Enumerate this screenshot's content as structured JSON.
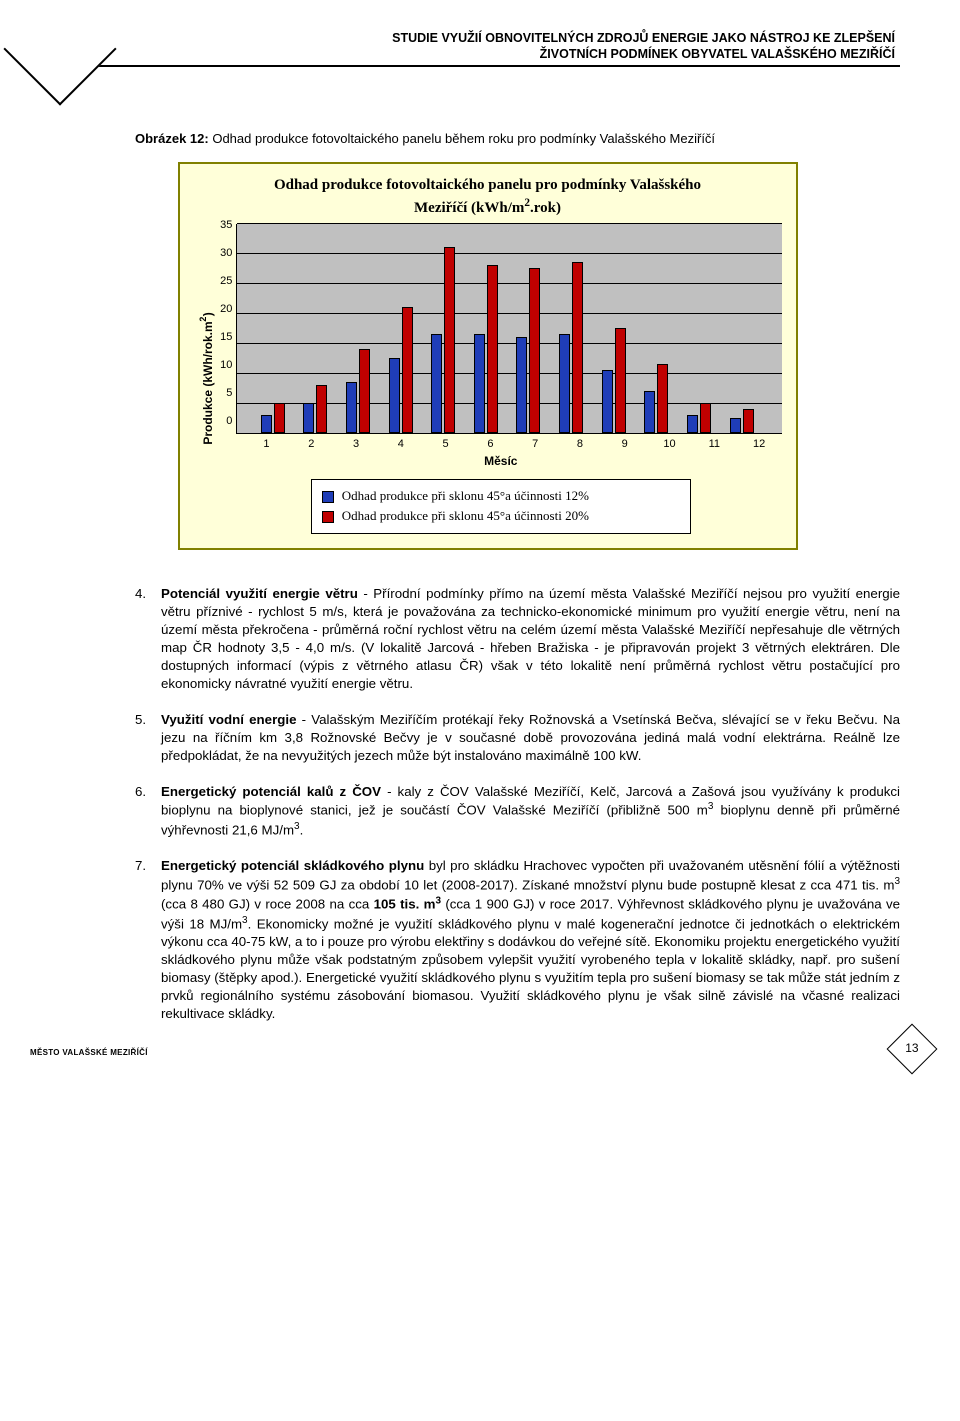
{
  "header": {
    "line1": "STUDIE VYUŽIÍ OBNOVITELNÝCH ZDROJŮ ENERGIE JAKO NÁSTROJ KE ZLEPŠENÍ",
    "line2": "ŽIVOTNÍCH PODMÍNEK OBYVATEL VALAŠSKÉHO MEZIŘÍČÍ"
  },
  "figure_caption": {
    "lead": "Obrázek 12:",
    "rest": "Odhad produkce fotovoltaického panelu během roku pro podmínky Valašského Meziříčí"
  },
  "chart": {
    "title_line1": "Odhad produkce fotovoltaického panelu pro podmínky Valašského",
    "title_line2": "Meziříčí (kWh/m².rok)",
    "y_label": "Produkce (kWh/rok.m²)",
    "x_label": "Měsíc",
    "y_max": 35,
    "y_step": 5,
    "y_ticks": [
      "0",
      "5",
      "10",
      "15",
      "20",
      "25",
      "30",
      "35"
    ],
    "x_ticks": [
      "1",
      "2",
      "3",
      "4",
      "5",
      "6",
      "7",
      "8",
      "9",
      "10",
      "11",
      "12"
    ],
    "series12_color": "#1f3db8",
    "series20_color": "#c00000",
    "grid_color": "#000000",
    "plot_bg": "#c0c0c0",
    "box_bg": "#ffffd9",
    "box_border": "#808000",
    "values12": [
      3,
      5,
      8.5,
      12.5,
      16.5,
      16.5,
      16,
      16.5,
      10.5,
      7,
      3,
      2.5
    ],
    "values20": [
      5,
      8,
      14,
      21,
      31,
      28,
      27.5,
      28.5,
      17.5,
      11.5,
      5,
      4
    ],
    "legend12": "Odhad produkce při sklonu 45°a účinnosti 12%",
    "legend20": "Odhad produkce při sklonu 45°a účinnosti 20%"
  },
  "items": {
    "p4_num": "4.",
    "p4_lead": "Potenciál využití energie větru",
    "p4_text": " - Přírodní podmínky přímo na území města Valašské Meziříčí nejsou pro využití energie větru příznivé - rychlost 5 m/s, která je považována za technicko-ekonomické minimum pro využití energie větru, není na území města překročena - průměrná roční rychlost větru na celém území města Valašské Meziříčí nepřesahuje dle větrných map ČR hodnoty 3,5 - 4,0 m/s. (V lokalitě Jarcová - hřeben Bražiska - je připravován projekt 3 větrných elektráren. Dle dostupných informací (výpis z větrného atlasu ČR) však v této lokalitě není průměrná rychlost větru postačující pro ekonomicky návratné využití energie větru.",
    "p5_num": "5.",
    "p5_lead": "Využití vodní energie",
    "p5_text": " - Valašským Meziříčím protékají řeky Rožnovská a Vsetínská Bečva, slévající se v řeku Bečvu. Na jezu na říčním km 3,8 Rožnovské Bečvy je v současné době provozována jediná malá vodní elektrárna. Reálně lze předpokládat, že na nevyužitých jezech může být instalováno maximálně 100 kW.",
    "p6_num": "6.",
    "p6_lead": "Energetický potenciál kalů z ČOV",
    "p6_text_a": " - kaly z ČOV Valašské Meziříčí, Kelč, Jarcová a Zašová jsou využívány k produkci bioplynu na bioplynové stanici, jež je součástí ČOV Valašské Meziříčí (přibližně 500 m",
    "p6_text_b": " bioplynu denně při průměrné výhřevnosti 21,6 MJ/m",
    "p6_text_c": ".",
    "p7_num": "7.",
    "p7_lead": "Energetický potenciál skládkového plynu",
    "p7_text_a": " byl pro skládku Hrachovec vypočten při uvažovaném utěsnění fólií a výtěžnosti plynu 70% ve výši 52 509 GJ za období 10 let (2008-2017). Získané množství plynu bude postupně klesat z cca 471 tis. m",
    "p7_text_b": " (cca 8 480 GJ) v roce 2008 na cca ",
    "p7_bold_b": "105 tis. m",
    "p7_text_c": " (cca 1 900 GJ) v roce 2017. Výhřevnost skládkového plynu je uvažována ve výši 18 MJ/m",
    "p7_text_d": ". Ekonomicky možné je využití skládkového plynu v malé kogenerační jednotce či jednotkách o elektrickém výkonu cca 40-75 kW, a to i pouze pro výrobu elektřiny s dodávkou do veřejné sítě. Ekonomiku projektu energetického využití skládkového plynu může však podstatným způsobem vylepšit využití vyrobeného tepla v lokalitě skládky, např. pro sušení biomasy (štěpky apod.). Energetické využití skládkového plynu s využitím tepla pro sušení biomasy se tak může stát jedním z prvků regionálního systému zásobování biomasou. Využití skládkového plynu je však silně závislé na včasné realizaci rekultivace skládky."
  },
  "footer": "MĚSTO VALAŠSKÉ MEZIŘÍČÍ",
  "page_number": "13"
}
